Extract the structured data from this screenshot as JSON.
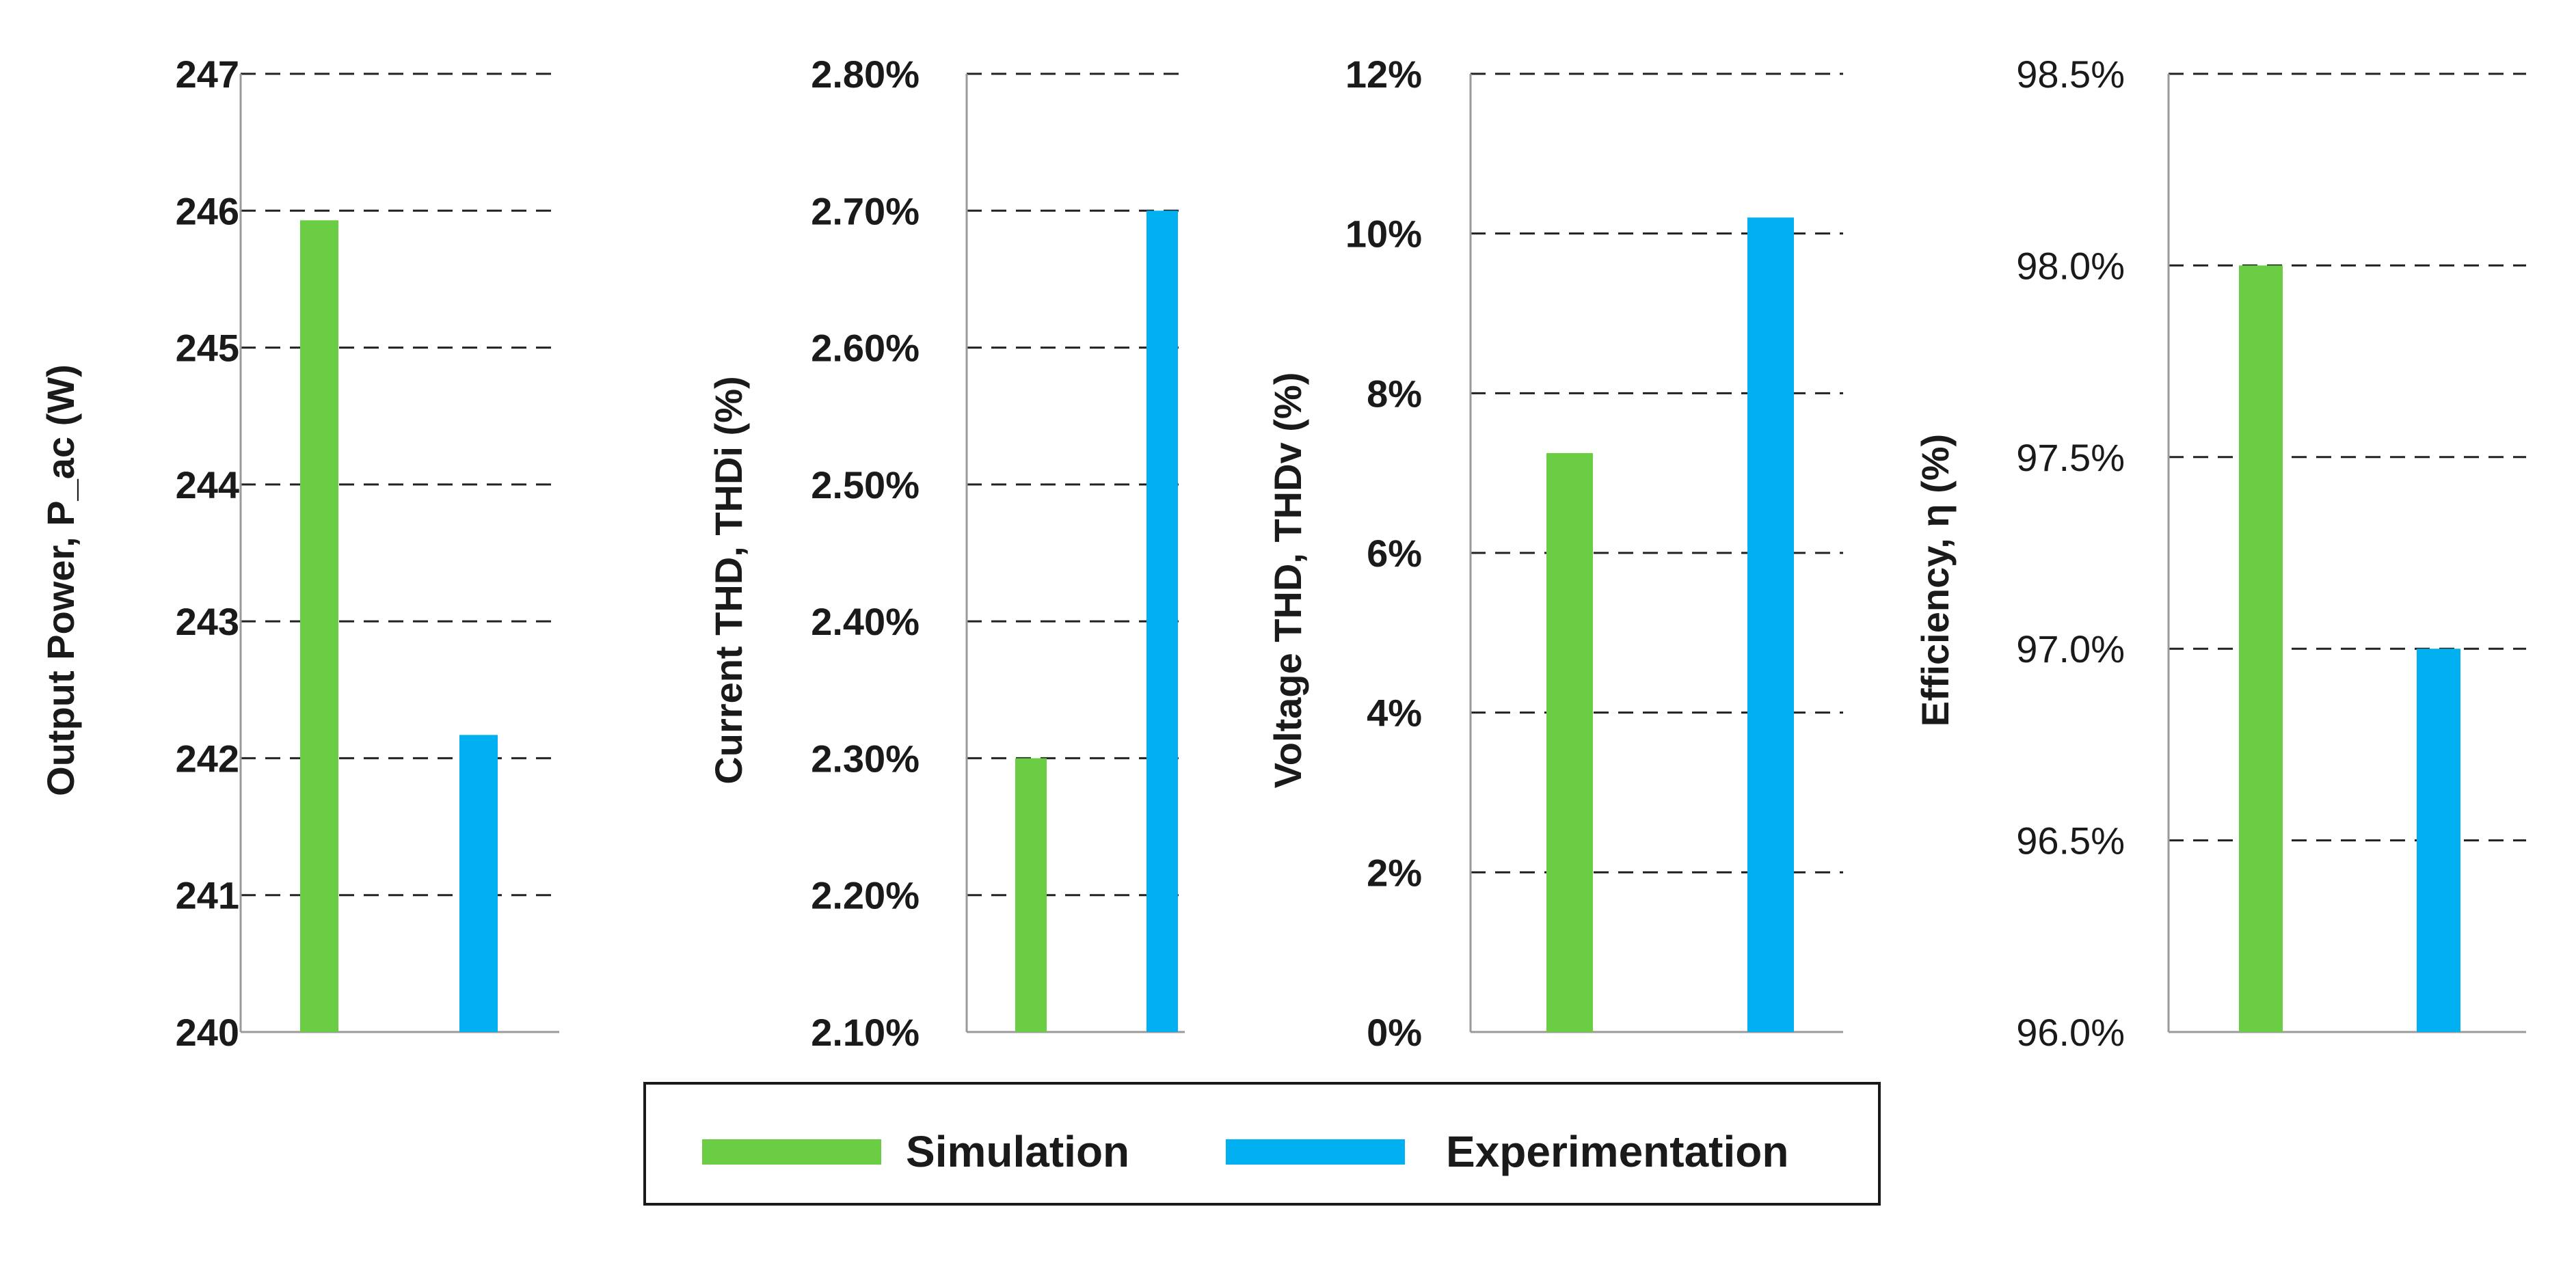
{
  "colors": {
    "simulation": "#6bcd43",
    "experimentation": "#00b0f0"
  },
  "legend": {
    "entries": [
      {
        "label": "Simulation",
        "color": "#6bcd43"
      },
      {
        "label": "Experimentation",
        "color": "#00b0f0"
      }
    ]
  },
  "chart_data": [
    {
      "type": "bar",
      "ylabel": "Output Power, P_ac (W)",
      "categories": [
        "Simulation",
        "Experimentation"
      ],
      "values": [
        245.93,
        242.17
      ],
      "ylim": [
        240,
        247
      ],
      "ticks": [
        "240",
        "241",
        "242",
        "243",
        "244",
        "245",
        "246",
        "247"
      ],
      "grid": true
    },
    {
      "type": "bar",
      "ylabel": "Current THD, THDi (%)",
      "categories": [
        "Simulation",
        "Experimentation"
      ],
      "values": [
        2.3,
        2.7
      ],
      "ylim": [
        2.1,
        2.8
      ],
      "ticks": [
        "2.10%",
        "2.20%",
        "2.30%",
        "2.40%",
        "2.50%",
        "2.60%",
        "2.70%",
        "2.80%"
      ],
      "grid": true
    },
    {
      "type": "bar",
      "ylabel": "Voltage THD, THDv (%)",
      "categories": [
        "Simulation",
        "Experimentation"
      ],
      "values": [
        7.25,
        10.2
      ],
      "ylim": [
        0,
        12
      ],
      "ticks": [
        "0%",
        "2%",
        "4%",
        "6%",
        "8%",
        "10%",
        "12%"
      ],
      "grid": true
    },
    {
      "type": "bar",
      "ylabel": "Efficiency, η (%)",
      "categories": [
        "Simulation",
        "Experimentation"
      ],
      "values": [
        98.0,
        97.0
      ],
      "ylim": [
        96.0,
        98.5
      ],
      "ticks": [
        "96.0%",
        "96.5%",
        "97.0%",
        "97.5%",
        "98.0%",
        "98.5%"
      ],
      "grid": true
    }
  ]
}
